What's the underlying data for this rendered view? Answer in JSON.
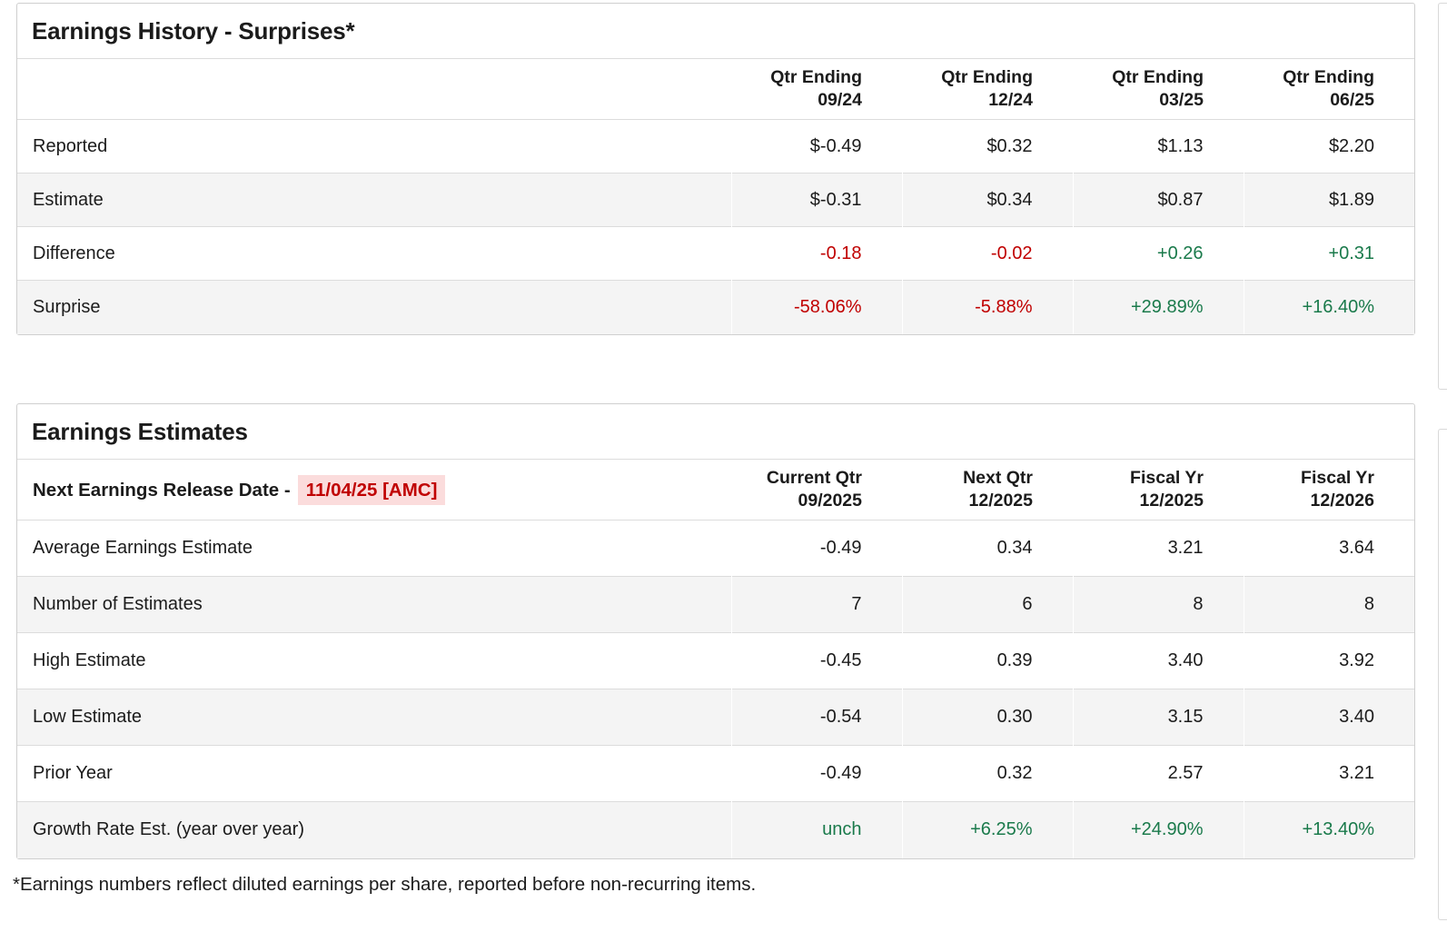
{
  "colors": {
    "text": "#1b1b1b",
    "negative": "#c00000",
    "positive": "#1a7a4b",
    "highlight_bg": "#fbdcdc",
    "row_alt": "#f4f4f4",
    "border": "#cfcfcf",
    "divider": "#dcdcdc"
  },
  "history": {
    "title": "Earnings History - Surprises*",
    "columns": [
      {
        "line1": "Qtr Ending",
        "line2": "09/24"
      },
      {
        "line1": "Qtr Ending",
        "line2": "12/24"
      },
      {
        "line1": "Qtr Ending",
        "line2": "03/25"
      },
      {
        "line1": "Qtr Ending",
        "line2": "06/25"
      }
    ],
    "rows": [
      {
        "label": "Reported",
        "values": [
          "$-0.49",
          "$0.32",
          "$1.13",
          "$2.20"
        ]
      },
      {
        "label": "Estimate",
        "values": [
          "$-0.31",
          "$0.34",
          "$0.87",
          "$1.89"
        ]
      },
      {
        "label": "Difference",
        "values": [
          "-0.18",
          "-0.02",
          "+0.26",
          "+0.31"
        ]
      },
      {
        "label": "Surprise",
        "values": [
          "-58.06%",
          "-5.88%",
          "+29.89%",
          "+16.40%"
        ]
      }
    ]
  },
  "estimates": {
    "title": "Earnings Estimates",
    "release_label": "Next Earnings Release Date -",
    "release_date": "11/04/25 [AMC]",
    "columns": [
      {
        "line1": "Current Qtr",
        "line2": "09/2025"
      },
      {
        "line1": "Next Qtr",
        "line2": "12/2025"
      },
      {
        "line1": "Fiscal Yr",
        "line2": "12/2025"
      },
      {
        "line1": "Fiscal Yr",
        "line2": "12/2026"
      }
    ],
    "rows": [
      {
        "label": "Average Earnings Estimate",
        "values": [
          "-0.49",
          "0.34",
          "3.21",
          "3.64"
        ]
      },
      {
        "label": "Number of Estimates",
        "values": [
          "7",
          "6",
          "8",
          "8"
        ]
      },
      {
        "label": "High Estimate",
        "values": [
          "-0.45",
          "0.39",
          "3.40",
          "3.92"
        ]
      },
      {
        "label": "Low Estimate",
        "values": [
          "-0.54",
          "0.30",
          "3.15",
          "3.40"
        ]
      },
      {
        "label": "Prior Year",
        "values": [
          "-0.49",
          "0.32",
          "2.57",
          "3.21"
        ]
      },
      {
        "label": "Growth Rate Est. (year over year)",
        "values": [
          "unch",
          "+6.25%",
          "+24.90%",
          "+13.40%"
        ]
      }
    ]
  },
  "footnote": "*Earnings numbers reflect diluted earnings per share, reported before non-recurring items."
}
